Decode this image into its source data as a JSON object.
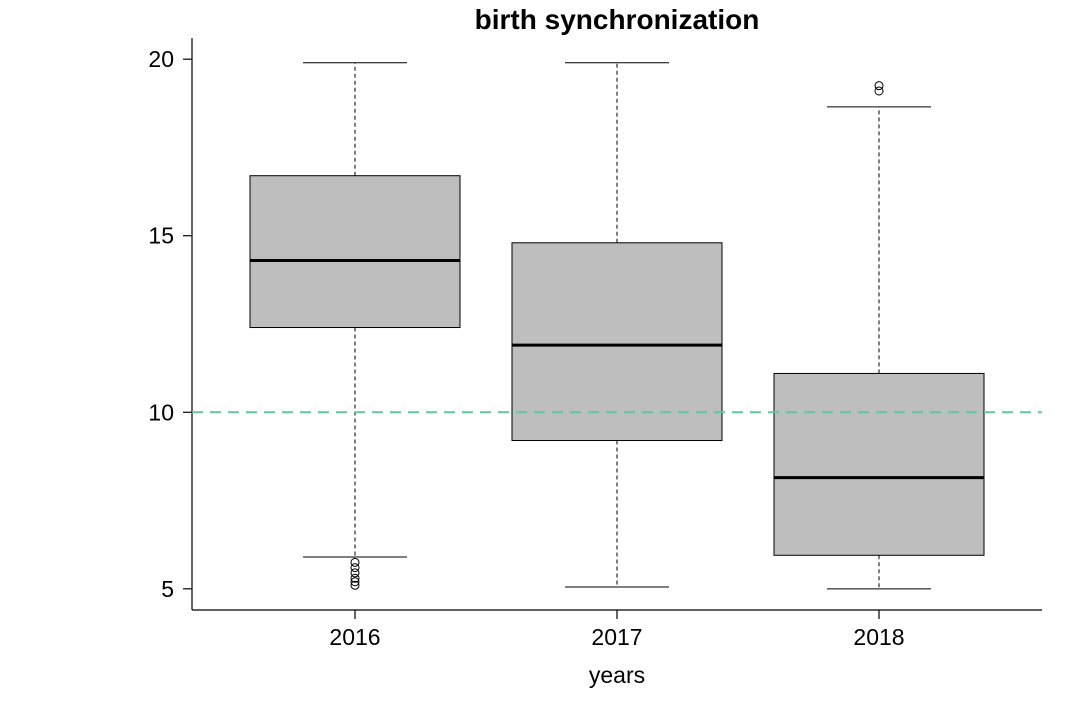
{
  "chart_data": {
    "type": "boxplot",
    "title": "birth synchronization",
    "xlabel": "years",
    "ylabel": "",
    "categories": [
      "2016",
      "2017",
      "2018"
    ],
    "y_ticks": [
      5,
      10,
      15,
      20
    ],
    "ylim": [
      4.4,
      20.6
    ],
    "grid": false,
    "box_color": "#bebebe",
    "reference_line": {
      "y": 10,
      "color": "#66c2a5",
      "style": "dashed"
    },
    "boxes": [
      {
        "category": "2016",
        "whisker_low": 5.9,
        "q1": 12.4,
        "median": 14.3,
        "q3": 16.7,
        "whisker_high": 19.9,
        "outliers": [
          5.1,
          5.2,
          5.3,
          5.45,
          5.6,
          5.75
        ]
      },
      {
        "category": "2017",
        "whisker_low": 5.05,
        "q1": 9.2,
        "median": 11.9,
        "q3": 14.8,
        "whisker_high": 19.9,
        "outliers": []
      },
      {
        "category": "2018",
        "whisker_low": 5.0,
        "q1": 5.95,
        "median": 8.15,
        "q3": 11.1,
        "whisker_high": 18.65,
        "outliers": [
          19.1,
          19.25
        ]
      }
    ]
  }
}
